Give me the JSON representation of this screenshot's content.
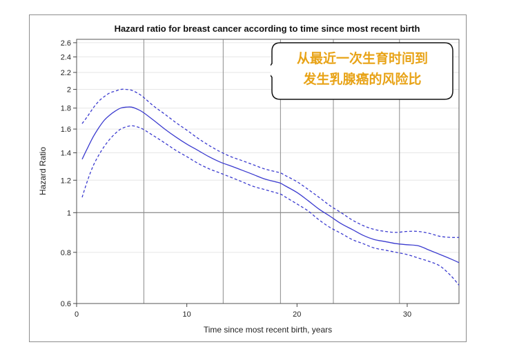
{
  "chart_data": {
    "type": "line",
    "title": "Hazard ratio for breast cancer according to time since most recent birth",
    "xlabel": "Time since most recent birth, years",
    "ylabel": "Hazard Ratio",
    "xlim": [
      0,
      34.7
    ],
    "ylim": [
      0.6,
      2.65
    ],
    "yscale": "log",
    "x_ticks": [
      0,
      10,
      20,
      30
    ],
    "y_ticks": [
      0.6,
      0.8,
      1,
      1.2,
      1.4,
      1.6,
      1.8,
      2,
      2.2,
      2.4,
      2.6
    ],
    "y_tick_labels": [
      "0.6",
      "0.8",
      "1",
      "1.2",
      "1.4",
      "1.6",
      "1.8",
      "2",
      "2.2",
      "2.4",
      "2.6"
    ],
    "reference_line_y": 1,
    "vertical_gridlines_x": [
      6.1,
      13.3,
      18.5,
      23.3,
      29.3
    ],
    "grid": true,
    "series": [
      {
        "style": "solid",
        "color": "#3a3acf",
        "x": [
          0.5,
          1,
          1.5,
          2,
          2.5,
          3,
          3.5,
          4,
          4.5,
          5,
          5.5,
          6,
          7,
          8,
          9,
          10,
          11,
          12,
          13,
          14,
          15,
          16,
          17,
          18,
          18.5,
          19,
          20,
          21,
          22,
          23,
          24,
          25,
          26,
          27,
          28,
          29,
          30,
          31,
          32,
          33,
          34,
          34.7
        ],
        "y": [
          1.35,
          1.44,
          1.53,
          1.61,
          1.68,
          1.73,
          1.77,
          1.8,
          1.81,
          1.81,
          1.79,
          1.76,
          1.68,
          1.6,
          1.53,
          1.47,
          1.42,
          1.37,
          1.33,
          1.3,
          1.27,
          1.24,
          1.21,
          1.19,
          1.18,
          1.16,
          1.12,
          1.07,
          1.02,
          0.98,
          0.94,
          0.91,
          0.88,
          0.86,
          0.85,
          0.84,
          0.835,
          0.83,
          0.81,
          0.79,
          0.77,
          0.755
        ]
      },
      {
        "style": "dashed",
        "color": "#3a3acf",
        "x": [
          0.5,
          1,
          1.5,
          2,
          2.5,
          3,
          3.5,
          4,
          4.5,
          5,
          5.5,
          6,
          7,
          8,
          9,
          10,
          11,
          12,
          13,
          14,
          15,
          16,
          17,
          18,
          18.5,
          19,
          20,
          21,
          22,
          23,
          24,
          25,
          26,
          27,
          28,
          29,
          30,
          31,
          32,
          33,
          34,
          34.7
        ],
        "y": [
          1.65,
          1.72,
          1.8,
          1.87,
          1.92,
          1.96,
          1.98,
          2.0,
          2.0,
          1.99,
          1.96,
          1.92,
          1.82,
          1.74,
          1.66,
          1.59,
          1.52,
          1.46,
          1.41,
          1.37,
          1.34,
          1.31,
          1.28,
          1.26,
          1.25,
          1.23,
          1.19,
          1.14,
          1.09,
          1.04,
          1.0,
          0.96,
          0.93,
          0.91,
          0.9,
          0.895,
          0.9,
          0.9,
          0.89,
          0.875,
          0.87,
          0.87
        ]
      },
      {
        "style": "dashed",
        "color": "#3a3acf",
        "x": [
          0.5,
          1,
          1.5,
          2,
          2.5,
          3,
          3.5,
          4,
          4.5,
          5,
          5.5,
          6,
          7,
          8,
          9,
          10,
          11,
          12,
          13,
          14,
          15,
          16,
          17,
          18,
          18.5,
          19,
          20,
          21,
          22,
          23,
          24,
          25,
          26,
          27,
          28,
          29,
          30,
          31,
          32,
          33,
          34,
          34.7
        ],
        "y": [
          1.09,
          1.2,
          1.3,
          1.38,
          1.45,
          1.51,
          1.56,
          1.6,
          1.62,
          1.63,
          1.62,
          1.6,
          1.54,
          1.48,
          1.42,
          1.37,
          1.32,
          1.28,
          1.25,
          1.22,
          1.19,
          1.16,
          1.14,
          1.12,
          1.11,
          1.09,
          1.05,
          1.01,
          0.96,
          0.92,
          0.89,
          0.86,
          0.84,
          0.82,
          0.81,
          0.8,
          0.79,
          0.775,
          0.76,
          0.74,
          0.7,
          0.665
        ]
      }
    ]
  },
  "callout": {
    "line1": "从最近一次生育时间到",
    "line2": "发生乳腺癌的风险比",
    "text_color": "#e8a317"
  }
}
